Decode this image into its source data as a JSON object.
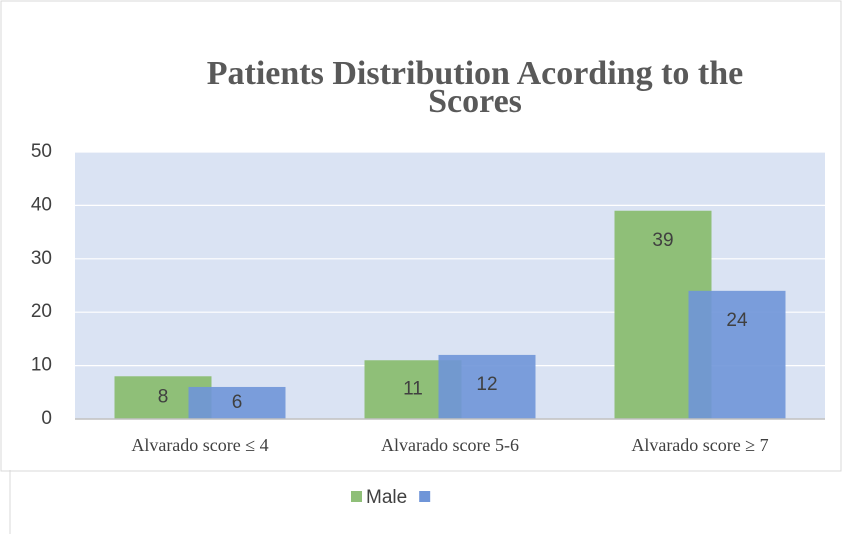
{
  "chart_data": {
    "type": "bar",
    "title": "Patients Distribution Acording to the Scores",
    "categories": [
      "Alvarado score ≤ 4",
      "Alvarado score 5-6",
      "Alvarado score ≥ 7"
    ],
    "series": [
      {
        "name": "Male",
        "color": "#8fbf78",
        "values": [
          8,
          11,
          39
        ]
      },
      {
        "name": null,
        "color": "#6f95d8",
        "values": [
          6,
          12,
          24
        ]
      }
    ],
    "ylim": [
      0,
      50
    ],
    "yticks": [
      0,
      10,
      20,
      30,
      40,
      50
    ],
    "grid": true,
    "legend": "bottom"
  }
}
